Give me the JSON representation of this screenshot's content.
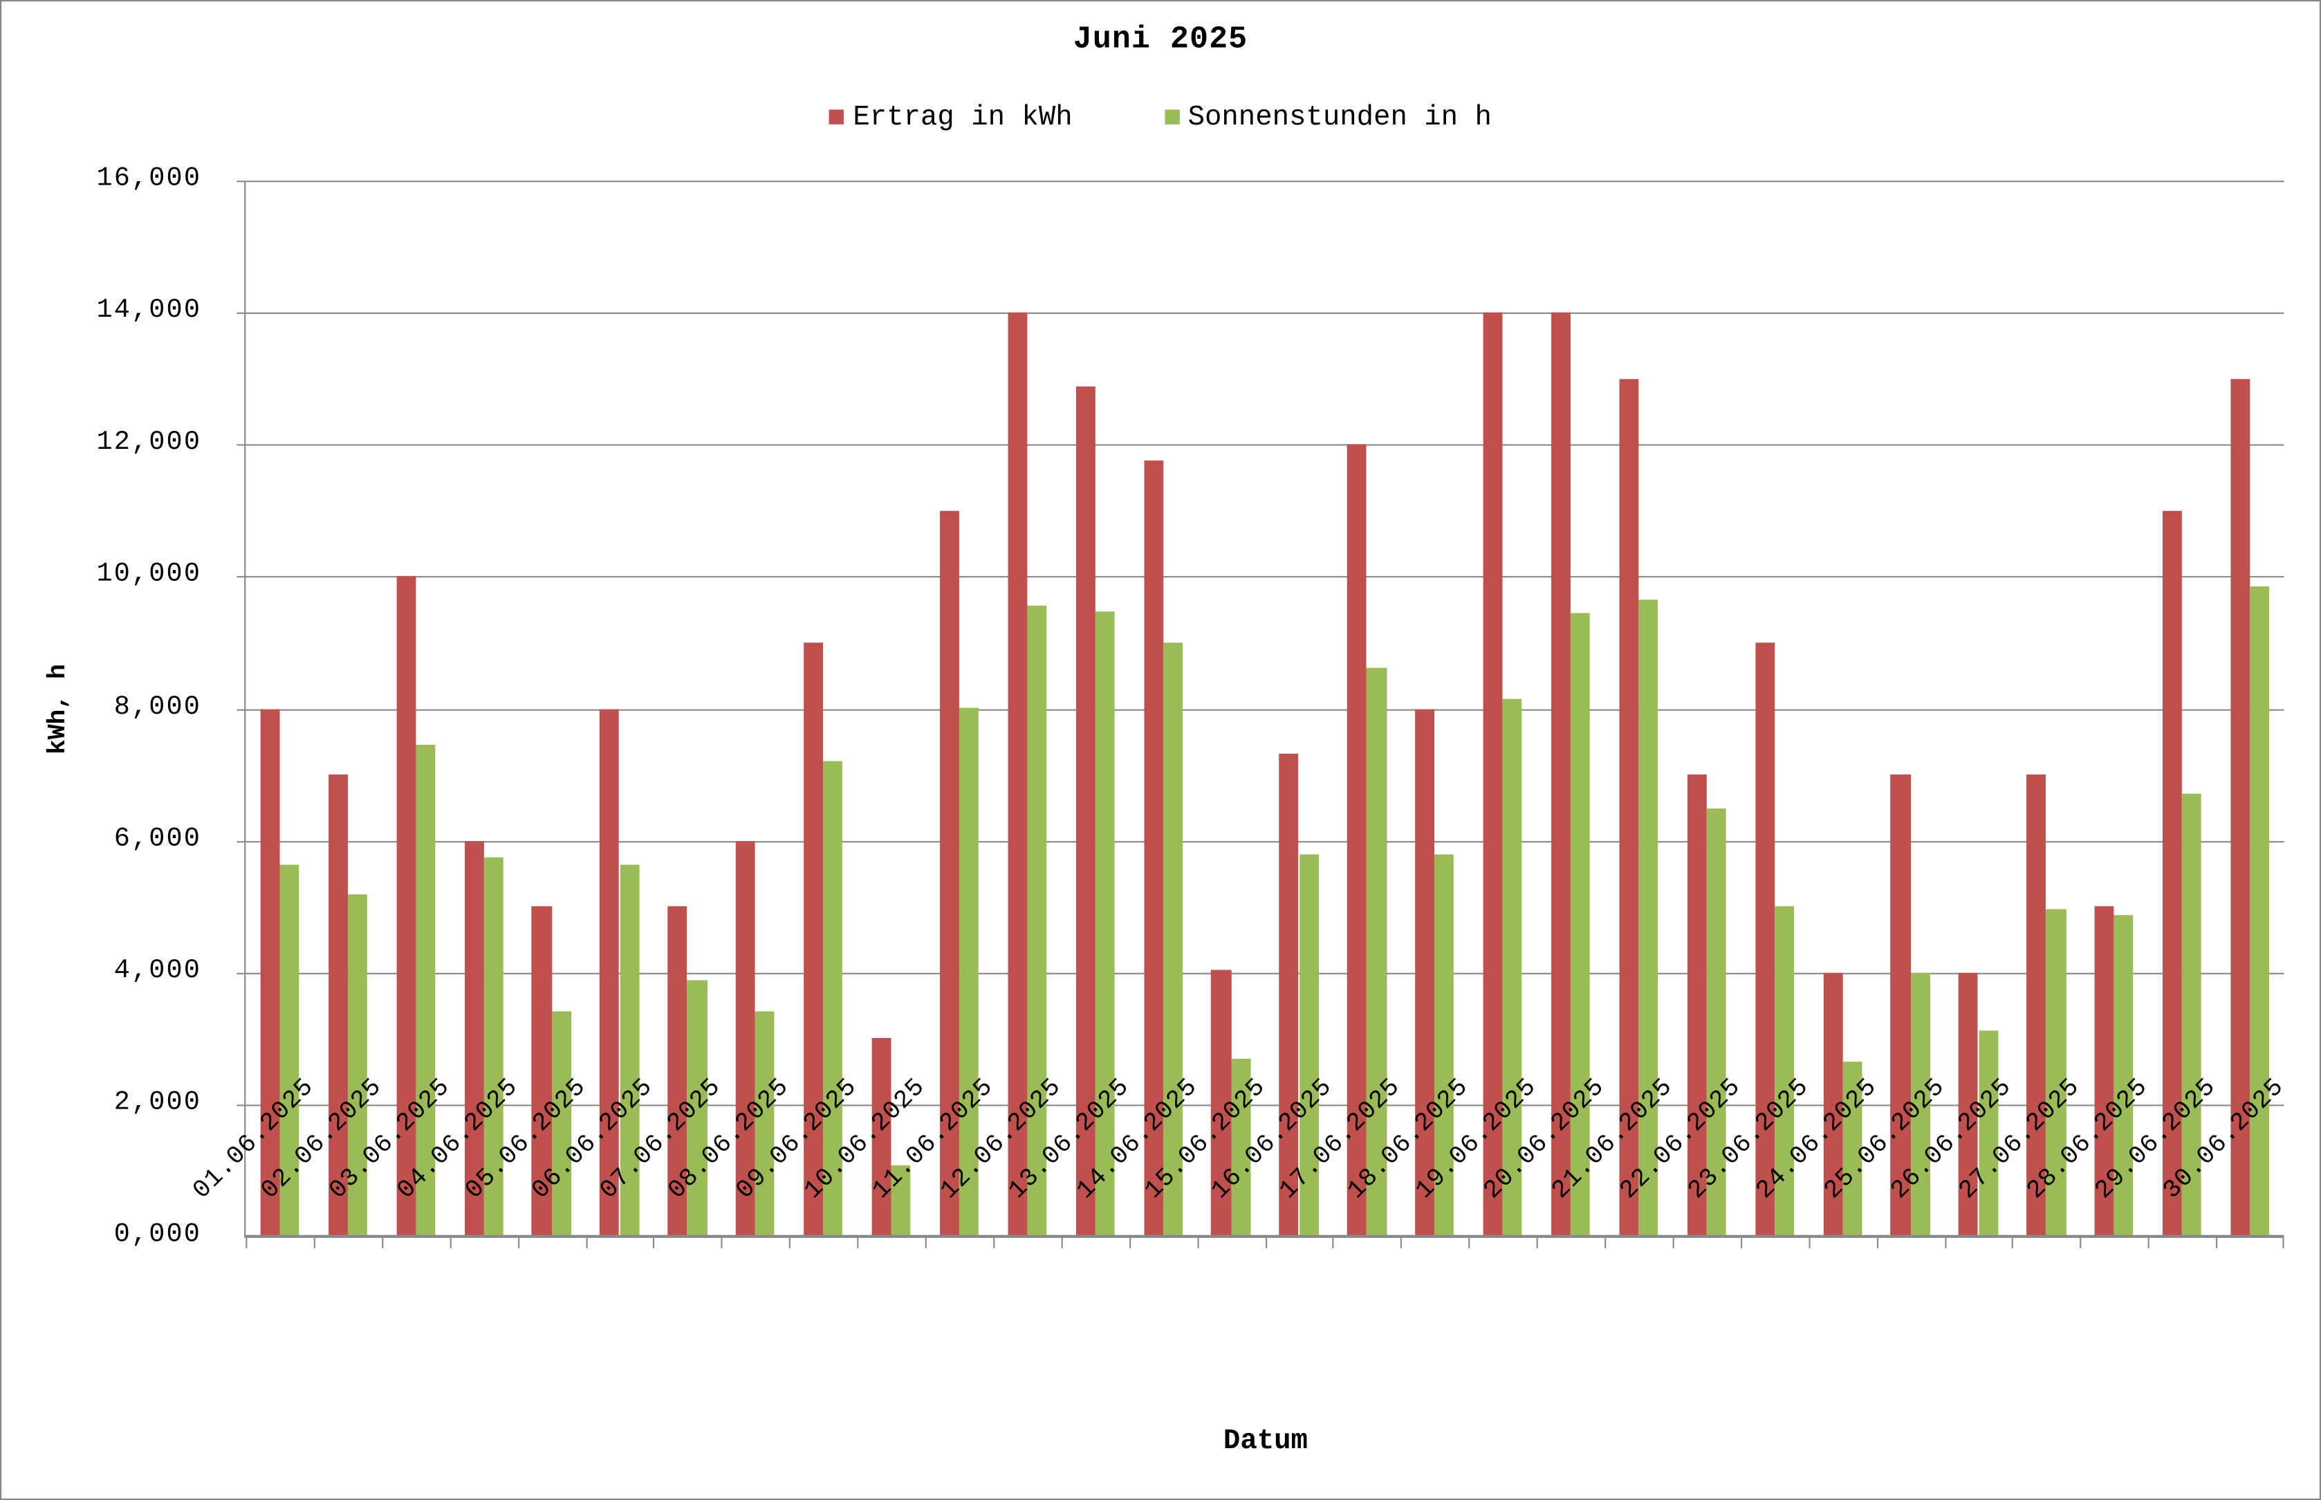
{
  "chart_data": {
    "type": "bar",
    "title": "Juni 2025",
    "xlabel": "Datum",
    "ylabel": "kWh, h",
    "ylim": [
      0,
      16
    ],
    "yticks": [
      "0,000",
      "2,000",
      "4,000",
      "6,000",
      "8,000",
      "10,000",
      "12,000",
      "14,000",
      "16,000"
    ],
    "grid": true,
    "legend_position": "top",
    "categories": [
      "01.06.2025",
      "02.06.2025",
      "03.06.2025",
      "04.06.2025",
      "05.06.2025",
      "06.06.2025",
      "07.06.2025",
      "08.06.2025",
      "09.06.2025",
      "10.06.2025",
      "11.06.2025",
      "12.06.2025",
      "13.06.2025",
      "14.06.2025",
      "15.06.2025",
      "16.06.2025",
      "17.06.2025",
      "18.06.2025",
      "19.06.2025",
      "20.06.2025",
      "21.06.2025",
      "22.06.2025",
      "23.06.2025",
      "24.06.2025",
      "25.06.2025",
      "26.06.2025",
      "27.06.2025",
      "28.06.2025",
      "29.06.2025",
      "30.06.2025"
    ],
    "series": [
      {
        "name": "Ertrag in kWh",
        "color": "#c0504d",
        "values": [
          8.0,
          7.0,
          10.0,
          6.0,
          5.0,
          8.0,
          5.0,
          6.0,
          9.0,
          3.0,
          11.0,
          14.0,
          12.88,
          11.75,
          4.04,
          7.31,
          12.0,
          8.0,
          14.0,
          14.0,
          13.0,
          7.0,
          9.0,
          4.0,
          7.0,
          4.0,
          7.0,
          5.0,
          11.0,
          13.0
        ]
      },
      {
        "name": "Sonnenstunden in h",
        "color": "#9bbb59",
        "values": [
          5.64,
          5.19,
          7.46,
          5.74,
          3.42,
          5.64,
          3.89,
          3.41,
          7.2,
          1.07,
          8.02,
          9.57,
          9.48,
          9.01,
          2.7,
          5.78,
          8.61,
          5.79,
          8.15,
          9.45,
          9.66,
          6.49,
          5.0,
          2.65,
          4.0,
          3.13,
          4.96,
          4.88,
          6.71,
          9.85
        ]
      }
    ]
  },
  "colors": {
    "axis": "#8a8a8a",
    "frame": "#868686"
  }
}
